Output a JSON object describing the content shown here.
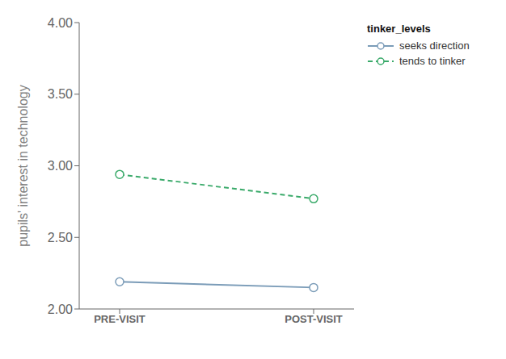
{
  "chart_data": {
    "type": "line",
    "categories": [
      "PRE-VISIT",
      "POST-VISIT"
    ],
    "series": [
      {
        "name": "seeks direction",
        "color": "#7b9cb8",
        "values": [
          2.19,
          2.15
        ],
        "line_style": "solid",
        "marker": "circle"
      },
      {
        "name": "tends to tinker",
        "color": "#3aaa6a",
        "values": [
          2.94,
          2.77
        ],
        "line_style": "dashed",
        "marker": "circle"
      }
    ],
    "ylabel": "pupils' interest in technology",
    "ylim": [
      2.0,
      4.0
    ],
    "yticks": [
      {
        "value": 2.0,
        "label": "2.00"
      },
      {
        "value": 2.5,
        "label": "2.50"
      },
      {
        "value": 3.0,
        "label": "3.00"
      },
      {
        "value": 3.5,
        "label": "3.50"
      },
      {
        "value": 4.0,
        "label": "4.00"
      }
    ],
    "grid": false,
    "legend": "right",
    "legend_title": "tinker_levels"
  }
}
